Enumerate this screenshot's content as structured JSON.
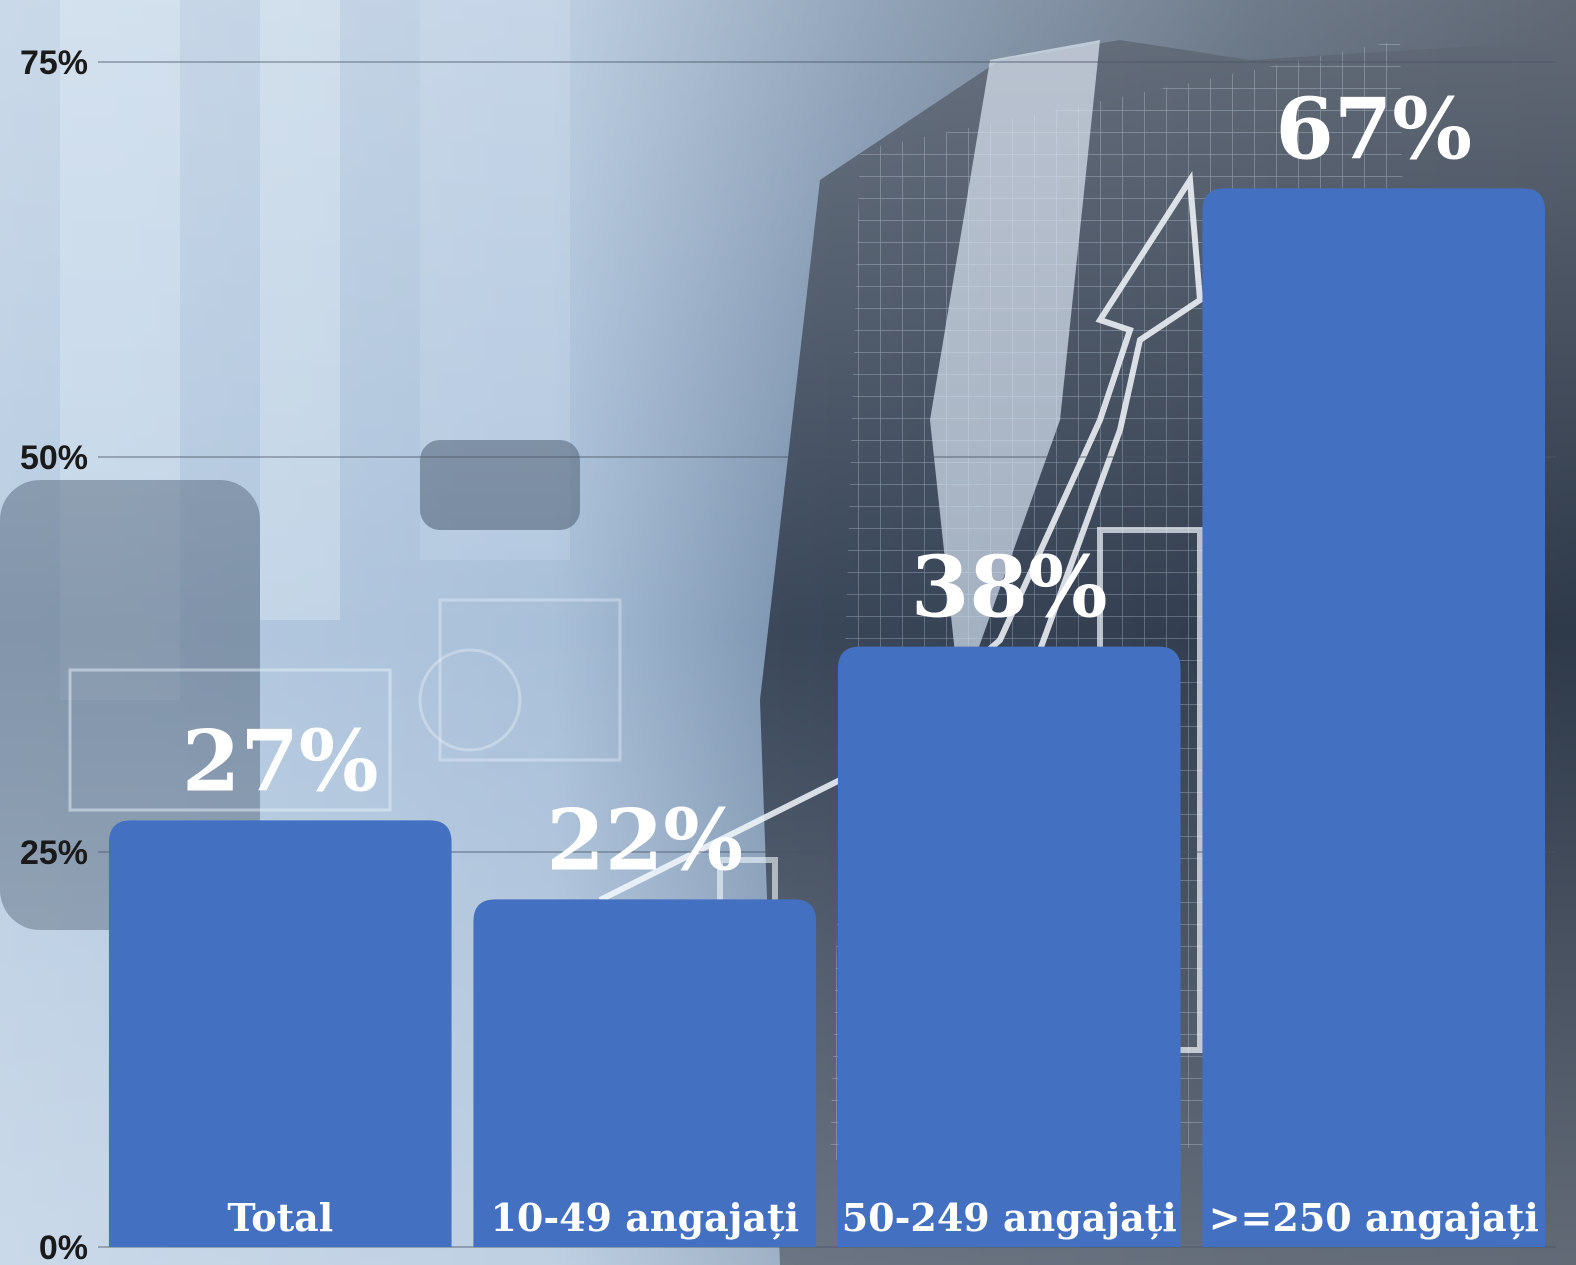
{
  "chart_data": {
    "type": "bar",
    "categories": [
      "Total",
      "10-49 angajați",
      "50-249 angajați",
      ">=250 angajați"
    ],
    "values": [
      27,
      22,
      38,
      67
    ],
    "value_labels": [
      "27%",
      "22%",
      "38%",
      "67%"
    ],
    "title": "",
    "xlabel": "",
    "ylabel": "",
    "ylim": [
      0,
      75
    ],
    "yticks": [
      0,
      25,
      50,
      75
    ],
    "ytick_labels": [
      "0%",
      "25%",
      "50%",
      "75%"
    ],
    "grid": true,
    "legend": "none",
    "bar_color": "#4470C1",
    "label_color": "#ffffff"
  },
  "background": {
    "description_icon": "business-chart-photo",
    "dominant_color": "#8fa8c4"
  }
}
